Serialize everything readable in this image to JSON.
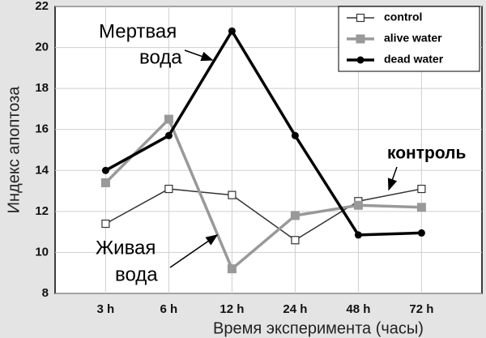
{
  "chart_data": {
    "type": "line",
    "x_label": "Время эксперимента (часы)",
    "y_label": "Индекс апоптоза",
    "categories": [
      "3 h",
      "6 h",
      "12 h",
      "24 h",
      "48 h",
      "72 h"
    ],
    "series": [
      {
        "name": "control",
        "color": "#333333",
        "values": [
          11.4,
          13.1,
          12.8,
          10.6,
          12.5,
          13.1
        ]
      },
      {
        "name": "alive water",
        "color": "#999999",
        "values": [
          13.4,
          16.5,
          9.2,
          11.8,
          12.3,
          12.2
        ]
      },
      {
        "name": "dead water",
        "color": "#000000",
        "values": [
          14.0,
          15.7,
          20.8,
          15.7,
          10.85,
          10.95
        ]
      }
    ],
    "ylim": [
      8,
      22
    ],
    "yticks": [
      8,
      10,
      12,
      14,
      16,
      18,
      20,
      22
    ],
    "grid": true,
    "annotations": [
      [
        "Мертвая",
        "вода"
      ],
      [
        "контроль"
      ],
      [
        "Живая",
        "вода"
      ]
    ]
  }
}
